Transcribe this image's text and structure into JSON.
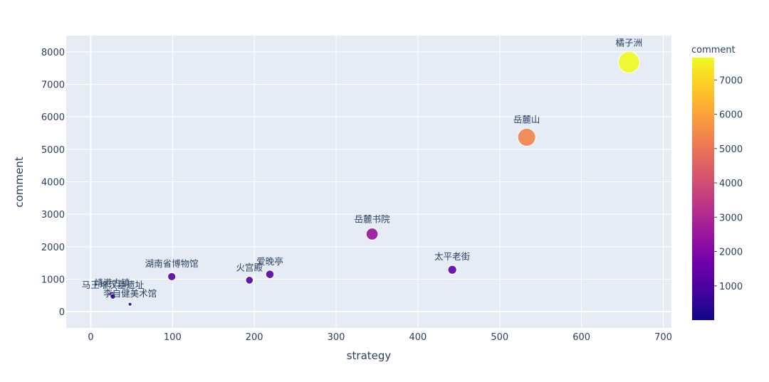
{
  "chart_data": {
    "type": "scatter",
    "xlabel": "strategy",
    "ylabel": "comment",
    "xlim": [
      -30,
      710
    ],
    "ylim": [
      -500,
      8500
    ],
    "x_ticks": [
      0,
      100,
      200,
      300,
      400,
      500,
      600,
      700
    ],
    "y_ticks": [
      0,
      1000,
      2000,
      3000,
      4000,
      5000,
      6000,
      7000,
      8000
    ],
    "colorbar": {
      "title": "comment",
      "range": [
        0,
        7650
      ],
      "ticks": [
        1000,
        2000,
        3000,
        4000,
        5000,
        6000,
        7000
      ],
      "colorscale": [
        "#0d0887",
        "#46039f",
        "#7201a8",
        "#9c179e",
        "#bd3786",
        "#d8576b",
        "#ed7953",
        "#fb9f3a",
        "#fdca26",
        "#f0f921"
      ]
    },
    "points": [
      {
        "name": "橘子洲",
        "x": 658,
        "y": 7680
      },
      {
        "name": "岳麓山",
        "x": 533,
        "y": 5370
      },
      {
        "name": "岳麓书院",
        "x": 344,
        "y": 2390
      },
      {
        "name": "太平老街",
        "x": 442,
        "y": 1290
      },
      {
        "name": "爱晚亭",
        "x": 219,
        "y": 1150
      },
      {
        "name": "火宫殿",
        "x": 194,
        "y": 970
      },
      {
        "name": "湖南省博物馆",
        "x": 99,
        "y": 1080
      },
      {
        "name": "靖港古镇",
        "x": 26,
        "y": 530
      },
      {
        "name": "马王堆汉墓遗址",
        "x": 27,
        "y": 470
      },
      {
        "name": "李自健美术馆",
        "x": 48,
        "y": 230
      }
    ]
  }
}
